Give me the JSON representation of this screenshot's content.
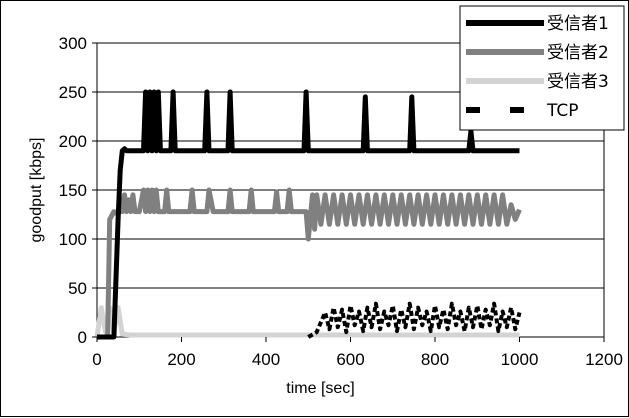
{
  "chart_data": {
    "type": "line",
    "xlabel": "time [sec]",
    "ylabel": "goodput [kbps]",
    "xlim": [
      0,
      1200
    ],
    "ylim": [
      0,
      300
    ],
    "xticks": [
      0,
      200,
      400,
      600,
      800,
      1000,
      1200
    ],
    "yticks": [
      0,
      50,
      100,
      150,
      200,
      250,
      300
    ],
    "grid": "horizontal",
    "legend_position": "top-right",
    "series": [
      {
        "name": "受信者1",
        "color": "#000000",
        "style": "solid-thick",
        "x": [
          0,
          40,
          45,
          50,
          55,
          60,
          65,
          70,
          110,
          115,
          120,
          125,
          130,
          135,
          140,
          145,
          150,
          175,
          180,
          185,
          255,
          260,
          265,
          310,
          315,
          320,
          490,
          495,
          500,
          630,
          635,
          640,
          740,
          745,
          750,
          880,
          885,
          890,
          1000
        ],
        "values": [
          0,
          0,
          60,
          120,
          170,
          190,
          192,
          190,
          190,
          250,
          190,
          250,
          190,
          250,
          190,
          250,
          190,
          190,
          250,
          190,
          190,
          250,
          190,
          190,
          250,
          190,
          190,
          250,
          190,
          190,
          245,
          190,
          190,
          245,
          190,
          190,
          210,
          190,
          190
        ]
      },
      {
        "name": "受信者2",
        "color": "#808080",
        "style": "solid-thick",
        "x": [
          0,
          25,
          30,
          40,
          50,
          55,
          60,
          65,
          70,
          75,
          80,
          85,
          90,
          100,
          110,
          115,
          120,
          125,
          130,
          135,
          140,
          145,
          150,
          160,
          165,
          170,
          180,
          220,
          225,
          230,
          250,
          260,
          265,
          275,
          310,
          315,
          320,
          360,
          365,
          370,
          420,
          425,
          430,
          450,
          455,
          460,
          490,
          495,
          500,
          510,
          515,
          520,
          530,
          540,
          550,
          560,
          570,
          580,
          590,
          600,
          610,
          620,
          630,
          640,
          650,
          660,
          670,
          680,
          690,
          700,
          710,
          720,
          730,
          740,
          750,
          760,
          770,
          780,
          790,
          800,
          810,
          820,
          830,
          840,
          850,
          860,
          870,
          880,
          890,
          900,
          910,
          920,
          930,
          940,
          950,
          960,
          970,
          980,
          990,
          1000
        ],
        "values": [
          0,
          0,
          120,
          128,
          125,
          140,
          128,
          145,
          128,
          140,
          128,
          145,
          128,
          128,
          150,
          128,
          150,
          128,
          150,
          128,
          150,
          128,
          128,
          128,
          150,
          128,
          128,
          128,
          150,
          128,
          128,
          128,
          150,
          128,
          128,
          150,
          128,
          128,
          150,
          128,
          128,
          148,
          128,
          128,
          150,
          128,
          128,
          128,
          100,
          145,
          110,
          145,
          115,
          145,
          115,
          145,
          115,
          145,
          115,
          145,
          115,
          145,
          115,
          145,
          115,
          145,
          115,
          145,
          115,
          145,
          115,
          145,
          115,
          145,
          115,
          145,
          115,
          145,
          115,
          145,
          115,
          145,
          115,
          145,
          115,
          145,
          115,
          145,
          115,
          145,
          115,
          145,
          115,
          145,
          115,
          145,
          115,
          135,
          120,
          130
        ]
      },
      {
        "name": "受信者3",
        "color": "#d3d3d3",
        "style": "solid-thick",
        "x": [
          0,
          10,
          20,
          30,
          40,
          50,
          60,
          80,
          200,
          400,
          500,
          520,
          600,
          800,
          1000
        ],
        "values": [
          0,
          30,
          5,
          30,
          5,
          30,
          3,
          2,
          2,
          2,
          2,
          2,
          2,
          2,
          2
        ]
      },
      {
        "name": "TCP",
        "color": "#000000",
        "style": "dashed-thick",
        "x": [
          500,
          520,
          530,
          540,
          550,
          560,
          570,
          580,
          590,
          600,
          610,
          620,
          630,
          640,
          650,
          660,
          670,
          680,
          690,
          700,
          710,
          720,
          730,
          740,
          750,
          760,
          770,
          780,
          790,
          800,
          810,
          820,
          830,
          840,
          850,
          860,
          870,
          880,
          890,
          900,
          910,
          920,
          930,
          940,
          950,
          960,
          970,
          980,
          990,
          1000
        ],
        "values": [
          0,
          5,
          15,
          25,
          8,
          30,
          10,
          28,
          5,
          32,
          12,
          26,
          6,
          30,
          10,
          34,
          8,
          26,
          12,
          32,
          6,
          28,
          10,
          34,
          8,
          30,
          12,
          26,
          6,
          32,
          10,
          28,
          8,
          34,
          12,
          26,
          6,
          30,
          10,
          32,
          8,
          28,
          12,
          34,
          6,
          26,
          10,
          30,
          8,
          25
        ]
      }
    ]
  }
}
